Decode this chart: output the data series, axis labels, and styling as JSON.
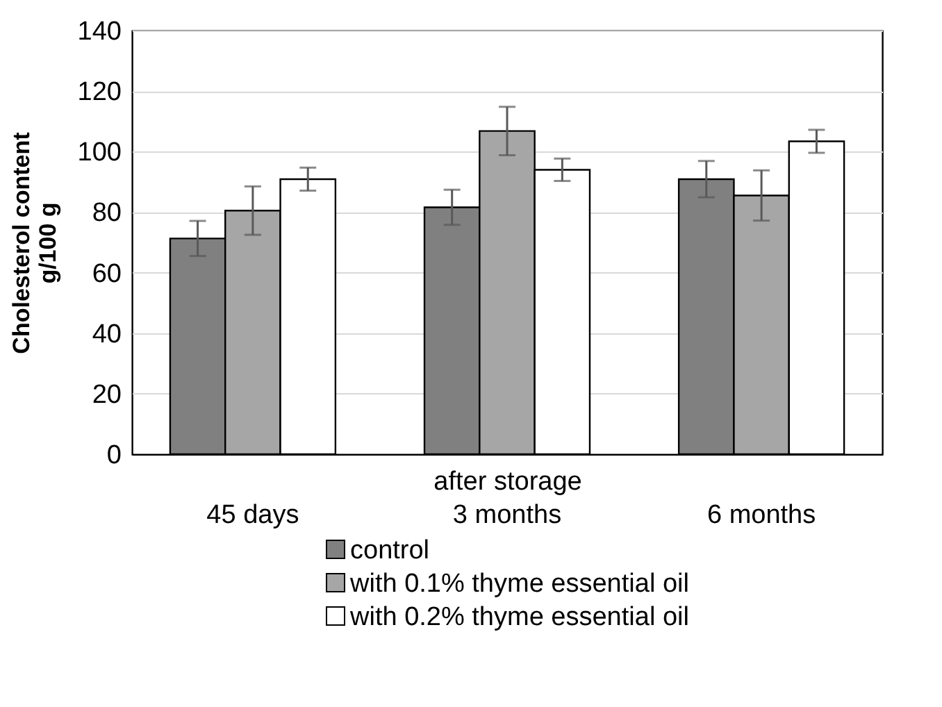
{
  "chart_data": {
    "type": "bar",
    "xlabel": "after storage",
    "ylabel": "Cholesterol content\ng/100 g",
    "categories": [
      "45 days",
      "3 months",
      "6 months"
    ],
    "series": [
      {
        "name": "control",
        "color": "#808080",
        "values": [
          71.3,
          81.6,
          90.9
        ],
        "errors": [
          5.8,
          5.8,
          6
        ]
      },
      {
        "name": "with 0.1% thyme essential oil",
        "color": "#a6a6a6",
        "values": [
          80.5,
          106.8,
          85.5
        ],
        "errors": [
          8,
          8,
          8.3
        ]
      },
      {
        "name": "with 0.2% thyme essential oil",
        "color": "#ffffff",
        "values": [
          90.9,
          94.0,
          103.4
        ],
        "errors": [
          3.8,
          3.7,
          3.8
        ]
      }
    ],
    "ylim": [
      0,
      140
    ],
    "yticks": [
      0,
      20,
      40,
      60,
      80,
      100,
      120,
      140
    ],
    "grid": "y",
    "legend": "bottom"
  }
}
